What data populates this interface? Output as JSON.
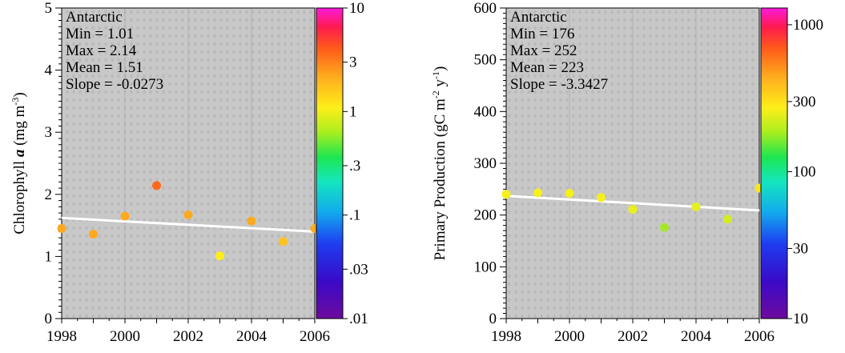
{
  "chart_data": [
    {
      "type": "scatter",
      "ylabel": "Chlorophyll a  (mg m-3)",
      "ylabel_parts": {
        "main": "Chlorophyll ",
        "italic": "a",
        "units_open": "  (mg m",
        "exp": "-3",
        "units_close": ")"
      },
      "xlim": [
        1998,
        2006
      ],
      "ylim": [
        0,
        5
      ],
      "x_ticks": [
        "1998",
        "2000",
        "2002",
        "2004",
        "2006"
      ],
      "y_ticks": [
        "0",
        "1",
        "2",
        "3",
        "4",
        "5"
      ],
      "x": [
        1998,
        1999,
        2000,
        2001,
        2002,
        2003,
        2004,
        2005,
        2006
      ],
      "y": [
        1.45,
        1.36,
        1.65,
        2.14,
        1.67,
        1.01,
        1.57,
        1.24,
        1.45
      ],
      "point_colors": [
        "#ffaa1e",
        "#ffaa1e",
        "#ffaa1e",
        "#ff6a1a",
        "#ffaa1e",
        "#ffee1a",
        "#ffaa1e",
        "#ffc21e",
        "#ffaa1e"
      ],
      "trend": {
        "x": [
          1998,
          2006
        ],
        "y": [
          1.62,
          1.4
        ],
        "color": "#ffffff"
      },
      "annotation": [
        "Antarctic",
        "Min = 1.01",
        "Max = 2.14",
        "Mean = 1.51",
        "Slope = -0.0273"
      ],
      "grid": true,
      "background": "#c8c8c8",
      "colorbar": {
        "scale": "log",
        "range": [
          0.01,
          10
        ],
        "ticks": [
          10,
          3,
          1,
          0.3,
          0.1,
          0.03,
          0.01
        ],
        "tick_labels": [
          "10",
          "3",
          "1",
          ".3",
          ".1",
          ".03",
          ".01"
        ]
      }
    },
    {
      "type": "scatter",
      "ylabel": "Primary Production  (gC m-2 y-1)",
      "ylabel_parts": {
        "main": "Primary Production  (gC m",
        "exp1": "-2",
        "mid": " y",
        "exp2": "-1",
        "close": ")"
      },
      "xlim": [
        1998,
        2006
      ],
      "ylim": [
        0,
        600
      ],
      "x_ticks": [
        "1998",
        "2000",
        "2002",
        "2004",
        "2006"
      ],
      "y_ticks": [
        "0",
        "100",
        "200",
        "300",
        "400",
        "500",
        "600"
      ],
      "x": [
        1998,
        1999,
        2000,
        2001,
        2002,
        2003,
        2004,
        2005,
        2006
      ],
      "y": [
        240,
        243,
        242,
        234,
        211,
        176,
        216,
        192,
        252
      ],
      "point_colors": [
        "#f5f01a",
        "#f5f01a",
        "#f5f01a",
        "#f5f01a",
        "#e6f01e",
        "#a6e628",
        "#e6f01e",
        "#d2ec22",
        "#f7e81a"
      ],
      "trend": {
        "x": [
          1998,
          2006
        ],
        "y": [
          237,
          209
        ],
        "color": "#ffffff"
      },
      "annotation": [
        "Antarctic",
        "Min = 176",
        "Max = 252",
        "Mean = 223",
        "Slope = -3.3427"
      ],
      "grid": true,
      "background": "#c8c8c8",
      "colorbar": {
        "scale": "log",
        "range": [
          10,
          1300
        ],
        "ticks": [
          1000,
          300,
          100,
          30,
          10
        ],
        "tick_labels": [
          "1000",
          "300",
          "100",
          "30",
          "10"
        ]
      }
    }
  ]
}
